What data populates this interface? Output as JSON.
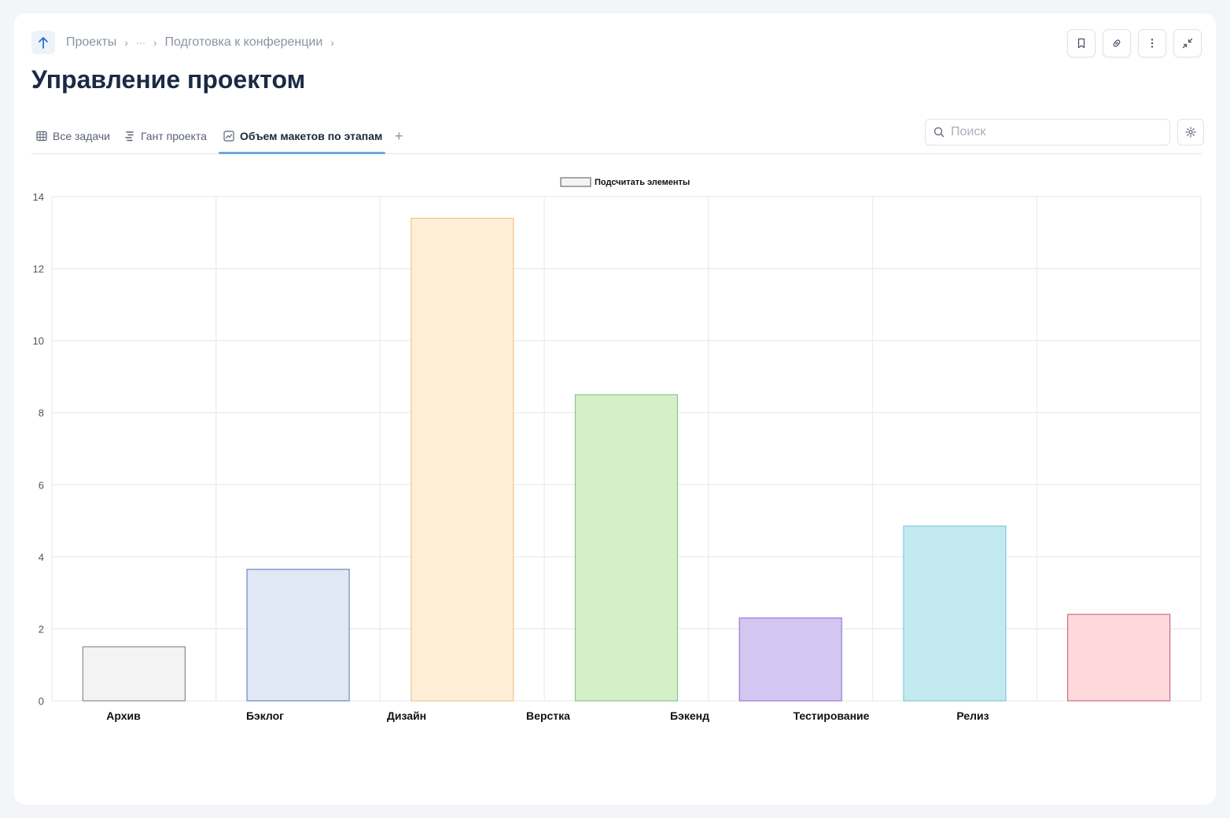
{
  "breadcrumb": {
    "items": [
      "Проекты",
      "···",
      "Подготовка к конференции"
    ]
  },
  "page": {
    "title": "Управление проектом"
  },
  "tabs": [
    {
      "label": "Все задачи",
      "icon": "table-icon"
    },
    {
      "label": "Гант проекта",
      "icon": "gantt-icon"
    },
    {
      "label": "Объем макетов по этапам",
      "icon": "chart-icon",
      "active": true
    }
  ],
  "add_tab_label": "+",
  "search": {
    "placeholder": "Поиск",
    "value": ""
  },
  "toolbar": {
    "icons": [
      "bookmark-icon",
      "link-icon",
      "more-vertical-icon",
      "collapse-icon"
    ]
  },
  "colors": {
    "accent": "#6fa8d6",
    "title": "#1b2a44"
  },
  "chart_data": {
    "type": "bar",
    "legend": {
      "label": "Подсчитать элементы",
      "position": "top-center"
    },
    "categories": [
      "Архив",
      "Бэклог",
      "Дизайн",
      "Верстка",
      "Бэкенд",
      "Тестирование",
      "Релиз",
      ""
    ],
    "values": [
      1.5,
      3.65,
      13.4,
      8.5,
      2.3,
      4.85,
      2.4,
      2.4
    ],
    "bar_colors": [
      {
        "fill": "#f3f3f3",
        "stroke": "#8c8c8c"
      },
      {
        "fill": "#e0e7f5",
        "stroke": "#6f86c5"
      },
      {
        "fill": "#ffefd9",
        "stroke": "#f3c38c"
      },
      {
        "fill": "#d5f0c8",
        "stroke": "#86c98a"
      },
      {
        "fill": "#d3c7f1",
        "stroke": "#9d7ad6"
      },
      {
        "fill": "#c3eaf0",
        "stroke": "#7dcbd6"
      },
      {
        "fill": "#ffd9dc",
        "stroke": "#d06a7f"
      }
    ],
    "yticks": [
      0,
      2,
      4,
      6,
      8,
      10,
      12,
      14
    ],
    "ylim": [
      0,
      14
    ],
    "grid": true
  }
}
